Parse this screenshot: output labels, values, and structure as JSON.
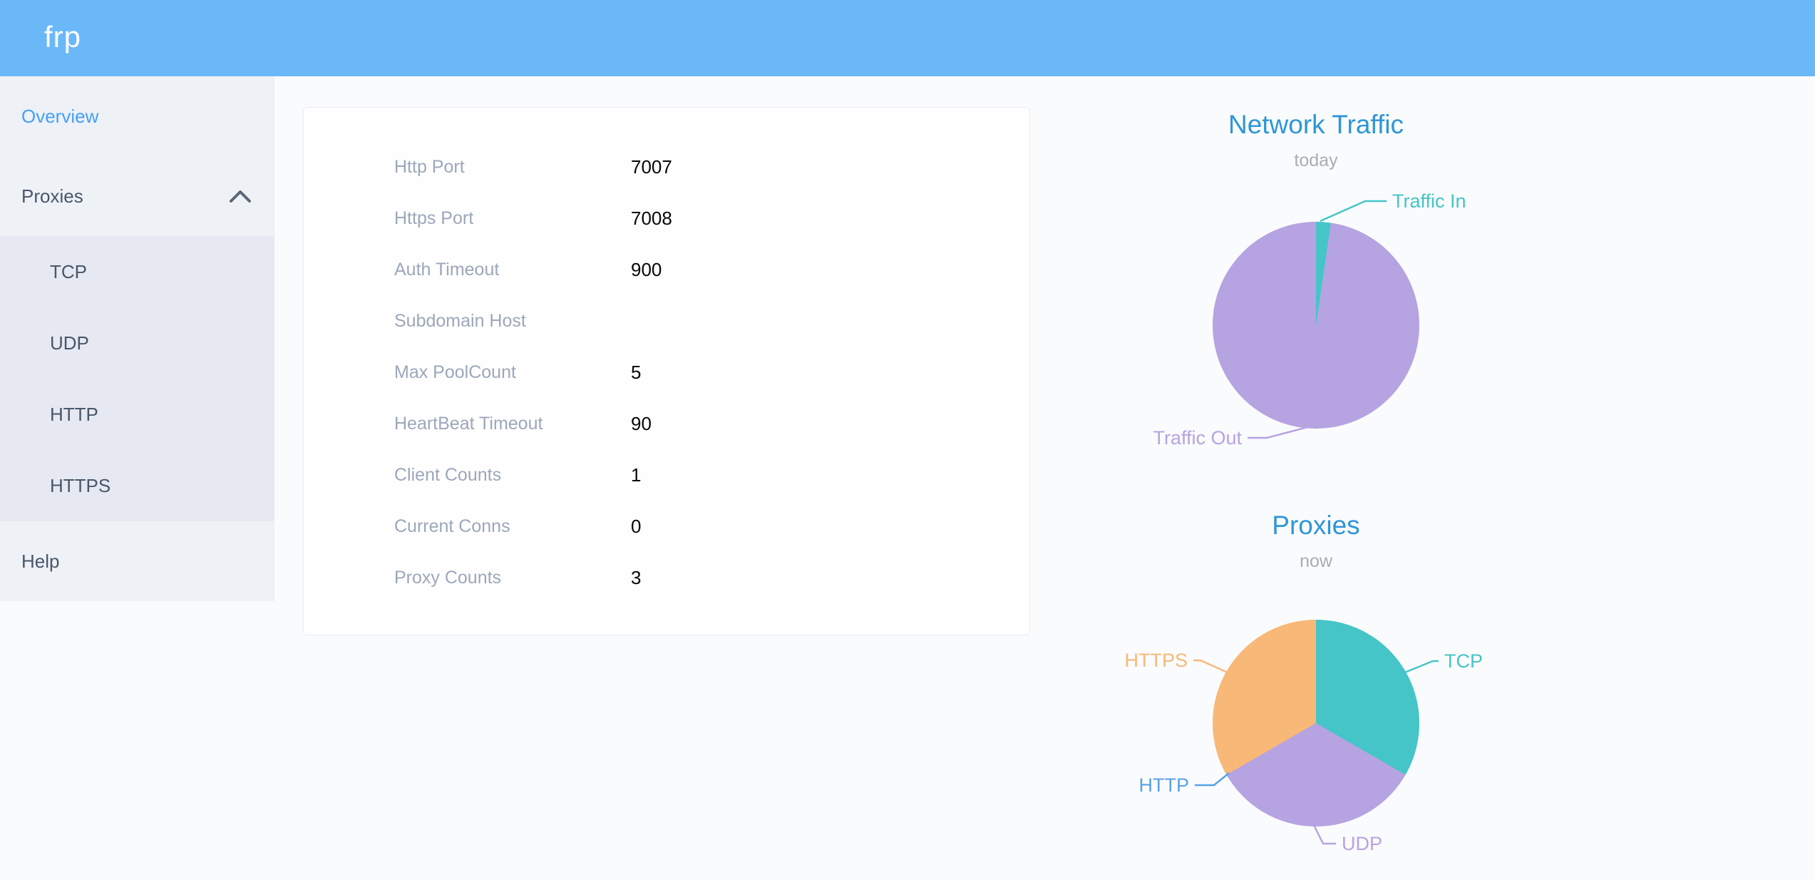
{
  "app": {
    "logo": "frp"
  },
  "theme": {
    "header_bg": "#6bb8f9",
    "sidebar_bg": "#eef1f6",
    "submenu_bg": "#e6e9f1",
    "sidebar_text": "#48576a",
    "active_item": "#459ff8",
    "chart_title": "#2e96d8",
    "chart_subtitle": "#a9adb3",
    "card_label": "#9ca7ba",
    "card_value": "#070707"
  },
  "sidebar": {
    "overview_label": "Overview",
    "proxies_label": "Proxies",
    "proxies_expanded": true,
    "proxies_children": [
      "TCP",
      "UDP",
      "HTTP",
      "HTTPS"
    ],
    "help_label": "Help"
  },
  "server_info": {
    "rows": [
      {
        "label": "Http Port",
        "value": "7007"
      },
      {
        "label": "Https Port",
        "value": "7008"
      },
      {
        "label": "Auth Timeout",
        "value": "900"
      },
      {
        "label": "Subdomain Host",
        "value": ""
      },
      {
        "label": "Max PoolCount",
        "value": "5"
      },
      {
        "label": "HeartBeat Timeout",
        "value": "90"
      },
      {
        "label": "Client Counts",
        "value": "1"
      },
      {
        "label": "Current Conns",
        "value": "0"
      },
      {
        "label": "Proxy Counts",
        "value": "3"
      }
    ]
  },
  "chart_data": [
    {
      "type": "pie",
      "title": "Network Traffic",
      "subtitle": "today",
      "legend_position": "callout-labels",
      "value_note": "percent estimated from slice angles; absolute byte values not shown",
      "series": [
        {
          "name": "Traffic In",
          "value": 2.3,
          "color": "#45c5c7"
        },
        {
          "name": "Traffic Out",
          "value": 97.7,
          "color": "#b6a3e1"
        }
      ]
    },
    {
      "type": "pie",
      "title": "Proxies",
      "subtitle": "now",
      "legend_position": "callout-labels",
      "value_note": "proxy counts by type",
      "series": [
        {
          "name": "TCP",
          "value": 1,
          "color": "#45c5c7"
        },
        {
          "name": "UDP",
          "value": 1,
          "color": "#b6a3e1"
        },
        {
          "name": "HTTP",
          "value": 0,
          "color": "#57a2e5"
        },
        {
          "name": "HTTPS",
          "value": 1,
          "color": "#f8b878"
        }
      ]
    }
  ]
}
